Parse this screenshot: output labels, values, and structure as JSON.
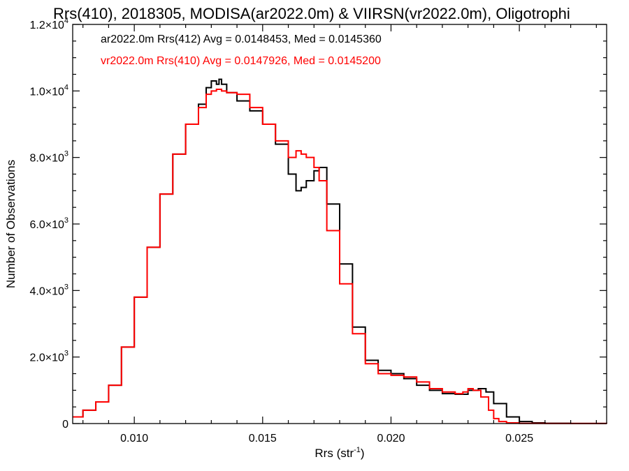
{
  "chart_data": {
    "type": "line",
    "step": true,
    "title": "Rrs(410), 2018305, MODISA(ar2022.0m) & VIIRSN(vr2022.0m), Oligotrophi",
    "xlabel": "Rrs (str",
    "xlabel_sup": "-1",
    "xlabel_tail": ")",
    "ylabel": "Number of Observations",
    "xlim": [
      0.0076,
      0.0284
    ],
    "ylim": [
      0,
      12000
    ],
    "x_ticks": [
      0.01,
      0.015,
      0.02,
      0.025
    ],
    "x_tick_labels": [
      "0.010",
      "0.015",
      "0.020",
      "0.025"
    ],
    "y_ticks": [
      {
        "value": 0,
        "mantissa": "0",
        "exp": ""
      },
      {
        "value": 2000,
        "mantissa": "2.0×10",
        "exp": "3"
      },
      {
        "value": 4000,
        "mantissa": "4.0×10",
        "exp": "3"
      },
      {
        "value": 6000,
        "mantissa": "6.0×10",
        "exp": "3"
      },
      {
        "value": 8000,
        "mantissa": "8.0×10",
        "exp": "3"
      },
      {
        "value": 10000,
        "mantissa": "1.0×10",
        "exp": "4"
      },
      {
        "value": 12000,
        "mantissa": "1.2×10",
        "exp": "4"
      }
    ],
    "grid": false,
    "legend_position": "top-left",
    "series": [
      {
        "label": "ar2022.0m Rrs(412) Avg = 0.0148453, Med = 0.0145360",
        "color": "#000000",
        "x": [
          0.0076,
          0.008,
          0.0085,
          0.009,
          0.0095,
          0.01,
          0.0105,
          0.011,
          0.0115,
          0.012,
          0.0125,
          0.0128,
          0.013,
          0.0132,
          0.0133,
          0.0134,
          0.0136,
          0.014,
          0.0145,
          0.015,
          0.0155,
          0.016,
          0.0163,
          0.0165,
          0.0167,
          0.017,
          0.0172,
          0.0175,
          0.018,
          0.0185,
          0.019,
          0.0195,
          0.02,
          0.0205,
          0.021,
          0.0215,
          0.022,
          0.0225,
          0.023,
          0.0234,
          0.0237,
          0.024,
          0.0245,
          0.025,
          0.0255,
          0.026,
          0.027,
          0.0284
        ],
        "y": [
          200,
          400,
          650,
          1150,
          2300,
          3800,
          5300,
          6900,
          8100,
          9000,
          9600,
          10100,
          10300,
          10200,
          10350,
          10200,
          9950,
          9700,
          9400,
          9000,
          8400,
          7500,
          7000,
          7100,
          7300,
          7600,
          7700,
          6600,
          4800,
          2900,
          1900,
          1600,
          1500,
          1350,
          1150,
          1000,
          900,
          880,
          1000,
          1050,
          950,
          600,
          200,
          60,
          20,
          8,
          3,
          0
        ]
      },
      {
        "label": "vr2022.0m Rrs(410) Avg = 0.0147926, Med = 0.0145200",
        "color": "#ff0000",
        "x": [
          0.0076,
          0.008,
          0.0085,
          0.009,
          0.0095,
          0.01,
          0.0105,
          0.011,
          0.0115,
          0.012,
          0.0125,
          0.0128,
          0.013,
          0.0132,
          0.0134,
          0.0136,
          0.014,
          0.0145,
          0.015,
          0.0155,
          0.016,
          0.0163,
          0.0165,
          0.0167,
          0.017,
          0.0172,
          0.0175,
          0.018,
          0.0185,
          0.019,
          0.0195,
          0.02,
          0.0205,
          0.021,
          0.0215,
          0.022,
          0.0225,
          0.0228,
          0.023,
          0.0232,
          0.0235,
          0.0238,
          0.024,
          0.0242,
          0.0245,
          0.025,
          0.026,
          0.0284
        ],
        "y": [
          200,
          400,
          650,
          1150,
          2300,
          3800,
          5300,
          6900,
          8100,
          9000,
          9500,
          9900,
          10000,
          10050,
          10000,
          9950,
          9900,
          9500,
          9000,
          8500,
          8000,
          8200,
          8100,
          8000,
          7700,
          7300,
          5800,
          4200,
          2700,
          1800,
          1500,
          1450,
          1400,
          1250,
          1050,
          950,
          900,
          950,
          1050,
          1000,
          800,
          400,
          150,
          60,
          20,
          6,
          2,
          0
        ]
      }
    ]
  }
}
